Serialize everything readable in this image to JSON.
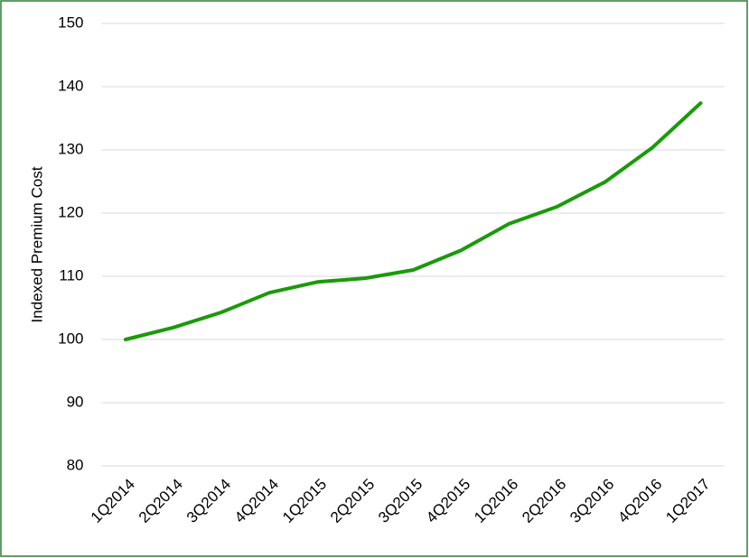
{
  "chart_data": {
    "type": "line",
    "y_label": "Indexed Premium Cost",
    "categories": [
      "1Q2014",
      "2Q2014",
      "3Q2014",
      "4Q2014",
      "1Q2015",
      "2Q2015",
      "3Q2015",
      "4Q2015",
      "1Q2016",
      "2Q2016",
      "3Q2016",
      "4Q2016",
      "1Q2017"
    ],
    "values": [
      100,
      101.9,
      104.3,
      107.4,
      109.1,
      109.7,
      111.0,
      114.1,
      118.3,
      121.0,
      124.9,
      130.4,
      137.4
    ],
    "color": "#1a9a0a",
    "ylim": [
      80,
      150
    ],
    "yticks": [
      80,
      90,
      100,
      110,
      120,
      130,
      140,
      150
    ],
    "grid": true
  }
}
